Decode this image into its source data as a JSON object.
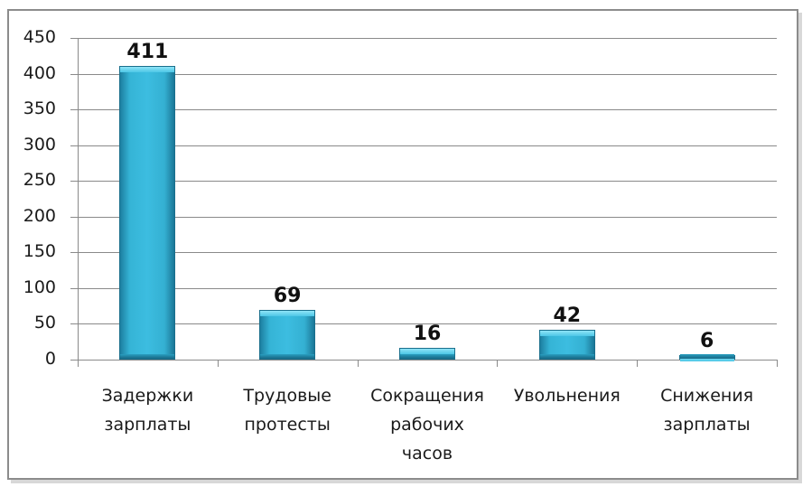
{
  "chart_data": {
    "type": "bar",
    "title": "",
    "xlabel": "",
    "ylabel": "",
    "ylim": [
      0,
      450
    ],
    "yticks": [
      0,
      50,
      100,
      150,
      200,
      250,
      300,
      350,
      400,
      450
    ],
    "grid": true,
    "legend": null,
    "categories": [
      "Задержки зарплаты",
      "Трудовые протесты",
      "Сокращения рабочих часов",
      "Увольнения",
      "Снижения зарплаты"
    ],
    "values": [
      411,
      69,
      16,
      42,
      6
    ],
    "bar_color": "#3cbde0"
  },
  "yaxis": {
    "ticks": [
      "450",
      "400",
      "350",
      "300",
      "250",
      "200",
      "150",
      "100",
      "50",
      "0"
    ]
  },
  "bars": [
    {
      "value": "411",
      "label_lines": [
        "Задержки",
        "зарплаты"
      ]
    },
    {
      "value": "69",
      "label_lines": [
        "Трудовые",
        "протесты"
      ]
    },
    {
      "value": "16",
      "label_lines": [
        "Сокращения",
        "рабочих",
        "часов"
      ]
    },
    {
      "value": "42",
      "label_lines": [
        "Увольнения"
      ]
    },
    {
      "value": "6",
      "label_lines": [
        "Снижения",
        "зарплаты"
      ]
    }
  ]
}
